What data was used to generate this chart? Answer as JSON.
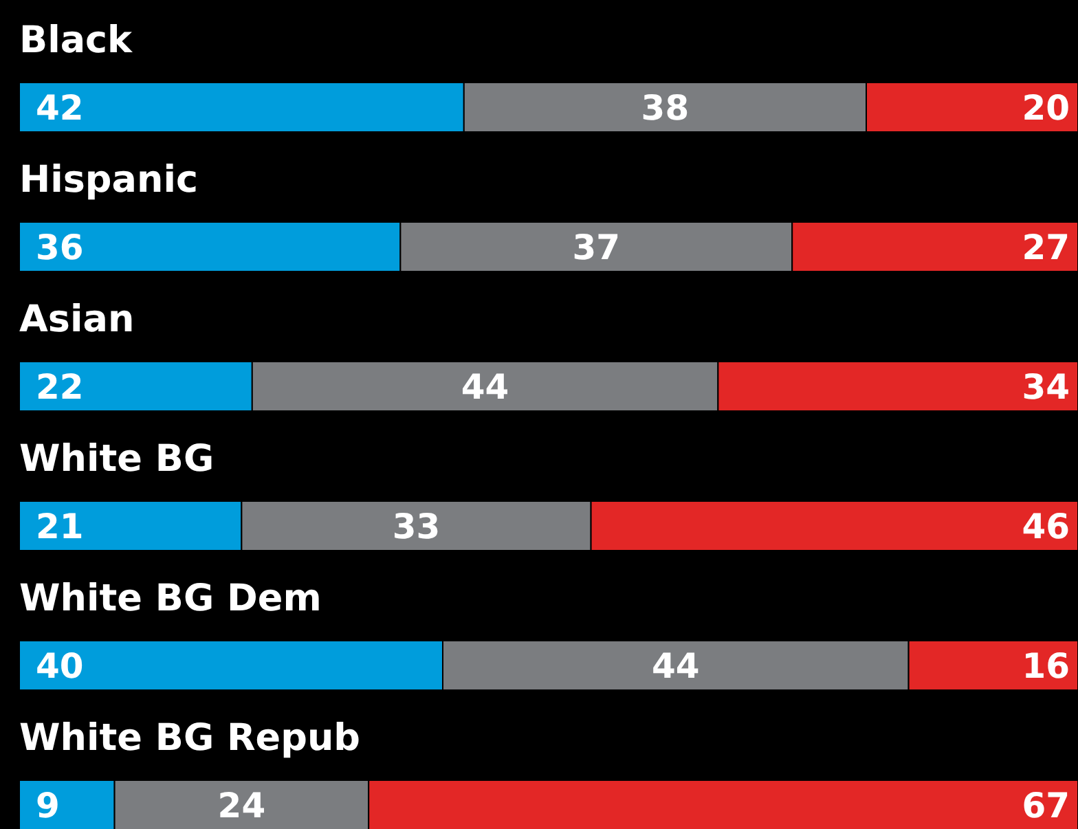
{
  "chart_data": {
    "type": "bar",
    "orientation": "horizontal",
    "stacked": true,
    "data_labels": true,
    "xlim": [
      0,
      100
    ],
    "categories": [
      "Black",
      "Hispanic",
      "Asian",
      "White BG",
      "White BG Dem",
      "White BG Repub"
    ],
    "series": [
      {
        "color": "#009ddc",
        "values": [
          42,
          36,
          22,
          21,
          40,
          9
        ]
      },
      {
        "color": "#7b7d80",
        "values": [
          38,
          37,
          44,
          33,
          44,
          24
        ]
      },
      {
        "color": "#e32726",
        "values": [
          20,
          27,
          34,
          46,
          16,
          67
        ]
      }
    ]
  }
}
